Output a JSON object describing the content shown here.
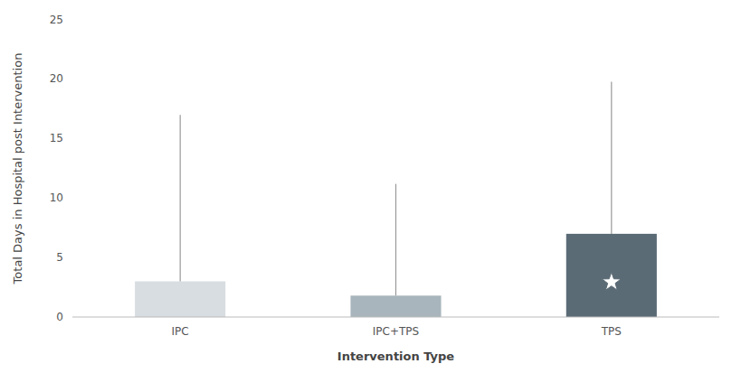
{
  "chart_data": {
    "type": "bar",
    "categories": [
      "IPC",
      "IPC+TPS",
      "TPS"
    ],
    "values": [
      3.0,
      1.8,
      7.0
    ],
    "errors_upper": [
      17.0,
      11.2,
      19.8
    ],
    "colors": [
      "#d8dde1",
      "#a8b5bc",
      "#5b6b76"
    ],
    "xlabel": "Intervention Type",
    "ylabel": "Total Days in Hospital post Intervention",
    "ylim": [
      0,
      25
    ],
    "yticks": [
      0,
      5,
      10,
      15,
      20,
      25
    ],
    "grid": false,
    "annotations": [
      {
        "x": "TPS",
        "y": 2.94,
        "marker": "star"
      }
    ]
  }
}
